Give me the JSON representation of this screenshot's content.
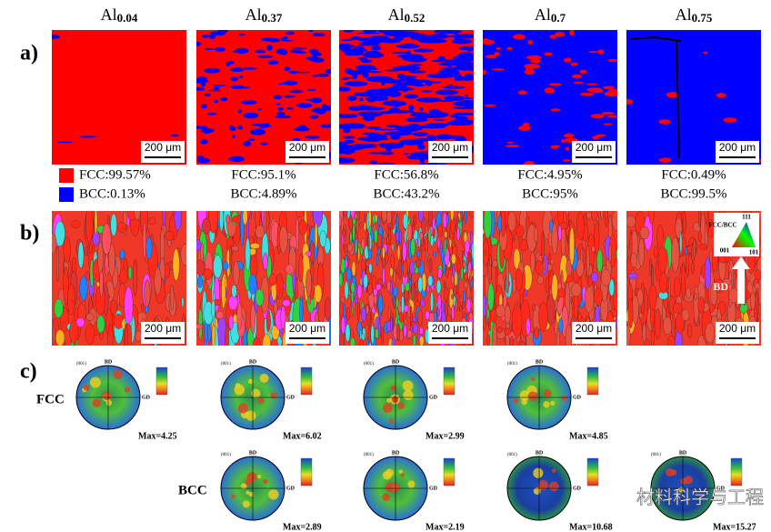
{
  "header": {
    "columns": [
      {
        "element": "Al",
        "subscript": "0.04"
      },
      {
        "element": "Al",
        "subscript": "0.37"
      },
      {
        "element": "Al",
        "subscript": "0.52"
      },
      {
        "element": "Al",
        "subscript": "0.7"
      },
      {
        "element": "Al",
        "subscript": "0.75"
      }
    ]
  },
  "row_labels": {
    "a": "a)",
    "b": "b)",
    "c": "c)"
  },
  "scale_bar": "200 μm",
  "phase_fractions": [
    {
      "fcc": "FCC:99.57%",
      "bcc": "BCC:0.13%"
    },
    {
      "fcc": "FCC:95.1%",
      "bcc": "BCC:4.89%"
    },
    {
      "fcc": "FCC:56.8%",
      "bcc": "BCC:43.2%"
    },
    {
      "fcc": "FCC:4.95%",
      "bcc": "BCC:95%"
    },
    {
      "fcc": "FCC:0.49%",
      "bcc": "BCC:99.5%"
    }
  ],
  "ipf_legend": {
    "title": "FCC/BCC",
    "top": "111",
    "left": "001",
    "right": "101",
    "arrow": "BD"
  },
  "pole_figures": {
    "plane": "(001)",
    "axis_top": "BD",
    "axis_side": "GD",
    "fcc_label": "FCC",
    "bcc_label": "BCC",
    "fcc": [
      "Max=4.25",
      "Max=6.02",
      "Max=2.99",
      "Max=4.85"
    ],
    "bcc": [
      "Max=2.89",
      "Max=2.19",
      "Max=10.68",
      "Max=15.27"
    ]
  },
  "watermark": "材料科学与工程"
}
